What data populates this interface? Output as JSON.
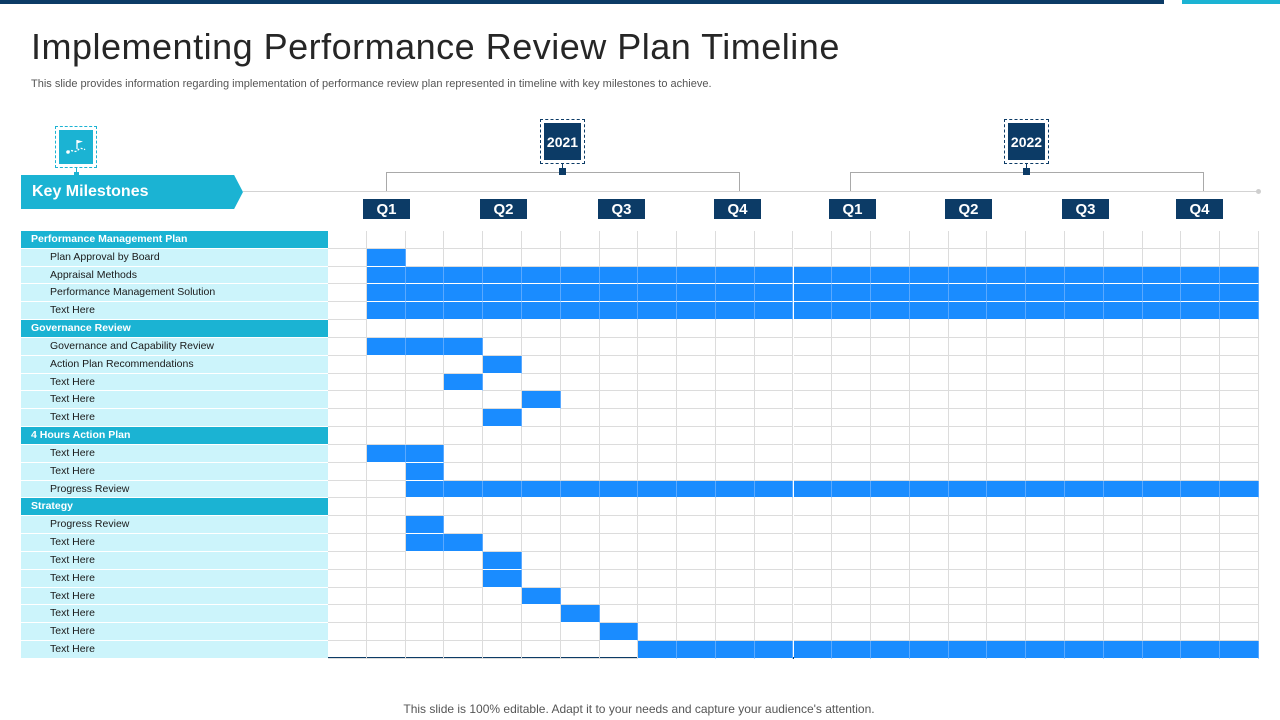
{
  "header": {
    "title": "Implementing Performance Review Plan Timeline",
    "subtitle": "This slide provides information regarding implementation of performance review plan represented in timeline with key milestones to achieve."
  },
  "key_milestones": {
    "label": "Key Milestones",
    "icon": "milestone-flag-icon"
  },
  "years": [
    "2021",
    "2022"
  ],
  "quarters": [
    "Q1",
    "Q2",
    "Q3",
    "Q4",
    "Q1",
    "Q2",
    "Q3",
    "Q4"
  ],
  "period_count": 24,
  "sections": [
    {
      "title": "Performance Management Plan",
      "tasks": [
        {
          "label": "Plan Approval by Board",
          "start": 2,
          "end": 2
        },
        {
          "label": "Appraisal Methods",
          "start": 2,
          "end": 24
        },
        {
          "label": "Performance Management  Solution",
          "start": 2,
          "end": 24
        },
        {
          "label": "Text Here",
          "start": 2,
          "end": 24
        }
      ]
    },
    {
      "title": "Governance Review",
      "tasks": [
        {
          "label": "Governance and Capability  Review",
          "start": 2,
          "end": 4
        },
        {
          "label": "Action Plan Recommendations",
          "start": 5,
          "end": 5
        },
        {
          "label": "Text Here",
          "start": 4,
          "end": 4
        },
        {
          "label": "Text Here",
          "start": 6,
          "end": 6
        },
        {
          "label": "Text Here",
          "start": 5,
          "end": 5
        }
      ]
    },
    {
      "title": "4 Hours Action Plan",
      "tasks": [
        {
          "label": "Text Here",
          "start": 2,
          "end": 3
        },
        {
          "label": "Text Here",
          "start": 3,
          "end": 3
        },
        {
          "label": "Progress Review",
          "start": 3,
          "end": 24
        }
      ]
    },
    {
      "title": "Strategy",
      "tasks": [
        {
          "label": "Progress Review",
          "start": 3,
          "end": 3
        },
        {
          "label": "Text Here",
          "start": 3,
          "end": 4
        },
        {
          "label": "Text Here",
          "start": 5,
          "end": 5
        },
        {
          "label": "Text Here",
          "start": 5,
          "end": 5
        },
        {
          "label": "Text Here",
          "start": 6,
          "end": 6
        },
        {
          "label": "Text Here",
          "start": 7,
          "end": 7
        },
        {
          "label": "Text Here",
          "start": 8,
          "end": 8
        },
        {
          "label": "Text Here",
          "start": 9,
          "end": 24
        }
      ]
    }
  ],
  "footer": {
    "text": "This slide is 100% editable. Adapt it to your needs and capture your audience's attention."
  },
  "colors": {
    "navy": "#0c3b66",
    "teal": "#1bb3d3",
    "light_teal": "#ccf4fb",
    "bar": "#1a8cff"
  }
}
